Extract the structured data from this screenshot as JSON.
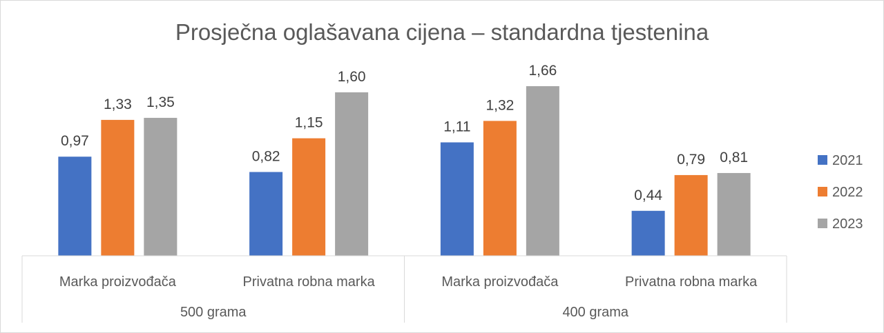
{
  "chart_data": {
    "type": "bar",
    "title": "Prosječna oglašavana cijena – standardna tjestenina",
    "categories": [
      "Marka proizvođača",
      "Privatna robna marka",
      "Marka proizvođača",
      "Privatna robna marka"
    ],
    "groups": [
      {
        "label": "500 grama",
        "categories": [
          "Marka proizvođača",
          "Privatna robna marka"
        ]
      },
      {
        "label": "400 grama",
        "categories": [
          "Marka proizvođača",
          "Privatna robna marka"
        ]
      }
    ],
    "series": [
      {
        "name": "2021",
        "color": "#4472c4",
        "values": [
          0.97,
          0.82,
          1.11,
          0.44
        ],
        "labels": [
          "0,97",
          "0,82",
          "1,11",
          "0,44"
        ]
      },
      {
        "name": "2022",
        "color": "#ed7d31",
        "values": [
          1.33,
          1.15,
          1.32,
          0.79
        ],
        "labels": [
          "1,33",
          "1,15",
          "1,32",
          "0,79"
        ]
      },
      {
        "name": "2023",
        "color": "#a5a5a5",
        "values": [
          1.35,
          1.6,
          1.66,
          0.81
        ],
        "labels": [
          "1,35",
          "1,60",
          "1,66",
          "0,81"
        ]
      }
    ],
    "ylim": [
      0,
      1.8
    ],
    "grid": false,
    "legend": "right"
  }
}
